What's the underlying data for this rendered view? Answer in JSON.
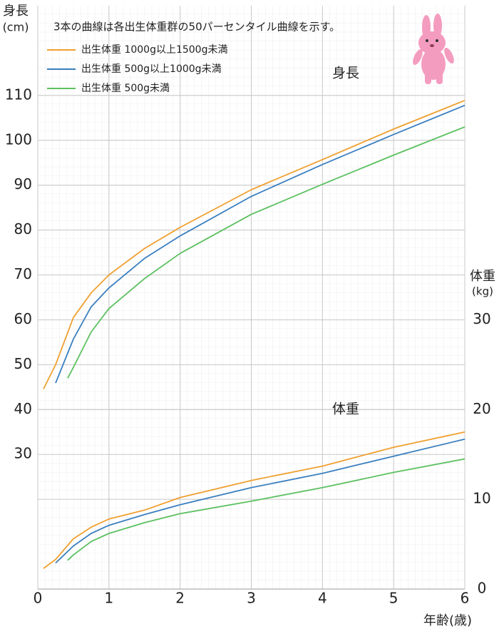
{
  "chart_data": {
    "type": "line",
    "note": "3本の曲線は各出生体重群の50パーセンタイル曲線を示す。",
    "y_label": "身長",
    "y_unit": "(cm)",
    "y2_label": "体重",
    "y2_unit": "(kg)",
    "height_label": "身長",
    "weight_label": "体重",
    "x_label": "年齢(歳)",
    "xlim": [
      0,
      6
    ],
    "xticks": [
      0,
      1,
      2,
      3,
      4,
      5,
      6
    ],
    "ylim": [
      0,
      130
    ],
    "yticks": [
      30,
      40,
      50,
      60,
      70,
      80,
      90,
      100,
      110
    ],
    "y2lim": [
      0,
      65
    ],
    "y2ticks": [
      0,
      10,
      20,
      30
    ],
    "grid": true,
    "series": [
      {
        "name": "出生体重 1000g以上1500g未満",
        "color": "#f0a030",
        "x": [
          0.08,
          0.25,
          0.5,
          0.75,
          1,
          1.5,
          2,
          3,
          4,
          5,
          6
        ],
        "height": [
          44.6,
          50,
          60.5,
          66,
          70,
          75.9,
          80.6,
          89,
          95.7,
          102.5,
          108.9
        ],
        "weight": [
          2.3,
          3.3,
          5.6,
          6.9,
          7.8,
          8.8,
          10.2,
          12.1,
          13.7,
          15.8,
          17.5
        ]
      },
      {
        "name": "出生体重 500g以上1000g未満",
        "color": "#3a7fc0",
        "x": [
          0.25,
          0.5,
          0.75,
          1,
          1.5,
          2,
          3,
          4,
          5,
          6
        ],
        "height": [
          45.9,
          55.7,
          62.9,
          67.1,
          73.7,
          78.7,
          87.5,
          94.6,
          101.3,
          107.8
        ],
        "weight": [
          2.9,
          4.8,
          6.2,
          7.1,
          8.3,
          9.4,
          11.3,
          12.9,
          14.8,
          16.7
        ]
      },
      {
        "name": "出生体重 500g未満",
        "color": "#5cc060",
        "x": [
          0.42,
          0.5,
          0.75,
          1,
          1.5,
          2,
          3,
          4,
          5,
          6
        ],
        "height": [
          47,
          49.4,
          57.3,
          62.5,
          69.2,
          74.8,
          83.5,
          90.2,
          96.7,
          103
        ],
        "weight": [
          3.2,
          3.8,
          5.3,
          6.2,
          7.4,
          8.4,
          9.8,
          11.3,
          13.0,
          14.5
        ]
      }
    ]
  }
}
